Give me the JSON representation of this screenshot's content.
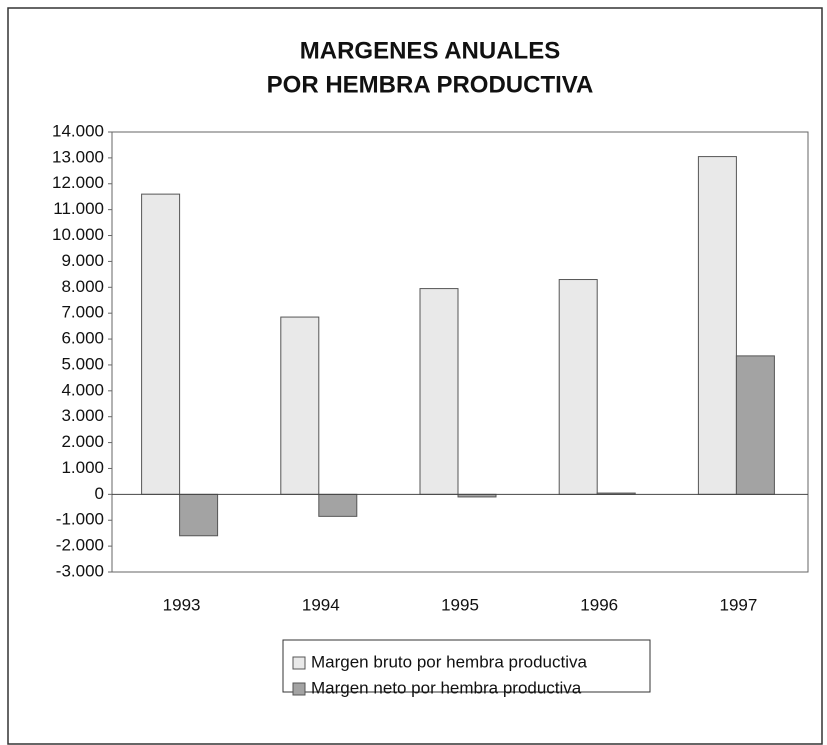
{
  "chart_data": {
    "type": "bar",
    "title": [
      "MARGENES ANUALES",
      "POR HEMBRA PRODUCTIVA"
    ],
    "categories": [
      "1993",
      "1994",
      "1995",
      "1996",
      "1997"
    ],
    "series": [
      {
        "name": "Margen bruto por hembra productiva",
        "color": "#e9e9e9",
        "values": [
          11600,
          6850,
          7950,
          8300,
          13050
        ]
      },
      {
        "name": "Margen neto por hembra productiva",
        "color": "#a3a3a3",
        "values": [
          -1600,
          -850,
          -100,
          50,
          5350
        ]
      }
    ],
    "ylim": [
      -3000,
      14000
    ],
    "yticks": [
      {
        "value": 14000,
        "label": "14.000"
      },
      {
        "value": 13000,
        "label": "13.000"
      },
      {
        "value": 12000,
        "label": "12.000"
      },
      {
        "value": 11000,
        "label": "11.000"
      },
      {
        "value": 10000,
        "label": "10.000"
      },
      {
        "value": 9000,
        "label": "9.000"
      },
      {
        "value": 8000,
        "label": "8.000"
      },
      {
        "value": 7000,
        "label": "7.000"
      },
      {
        "value": 6000,
        "label": "6.000"
      },
      {
        "value": 5000,
        "label": "5.000"
      },
      {
        "value": 4000,
        "label": "4.000"
      },
      {
        "value": 3000,
        "label": "3.000"
      },
      {
        "value": 2000,
        "label": "2.000"
      },
      {
        "value": 1000,
        "label": "1.000"
      },
      0,
      {
        "value": -1000,
        "label": "-1.000"
      },
      {
        "value": -2000,
        "label": "-2.000"
      },
      {
        "value": -3000,
        "label": "-3.000"
      }
    ],
    "grid": false
  }
}
